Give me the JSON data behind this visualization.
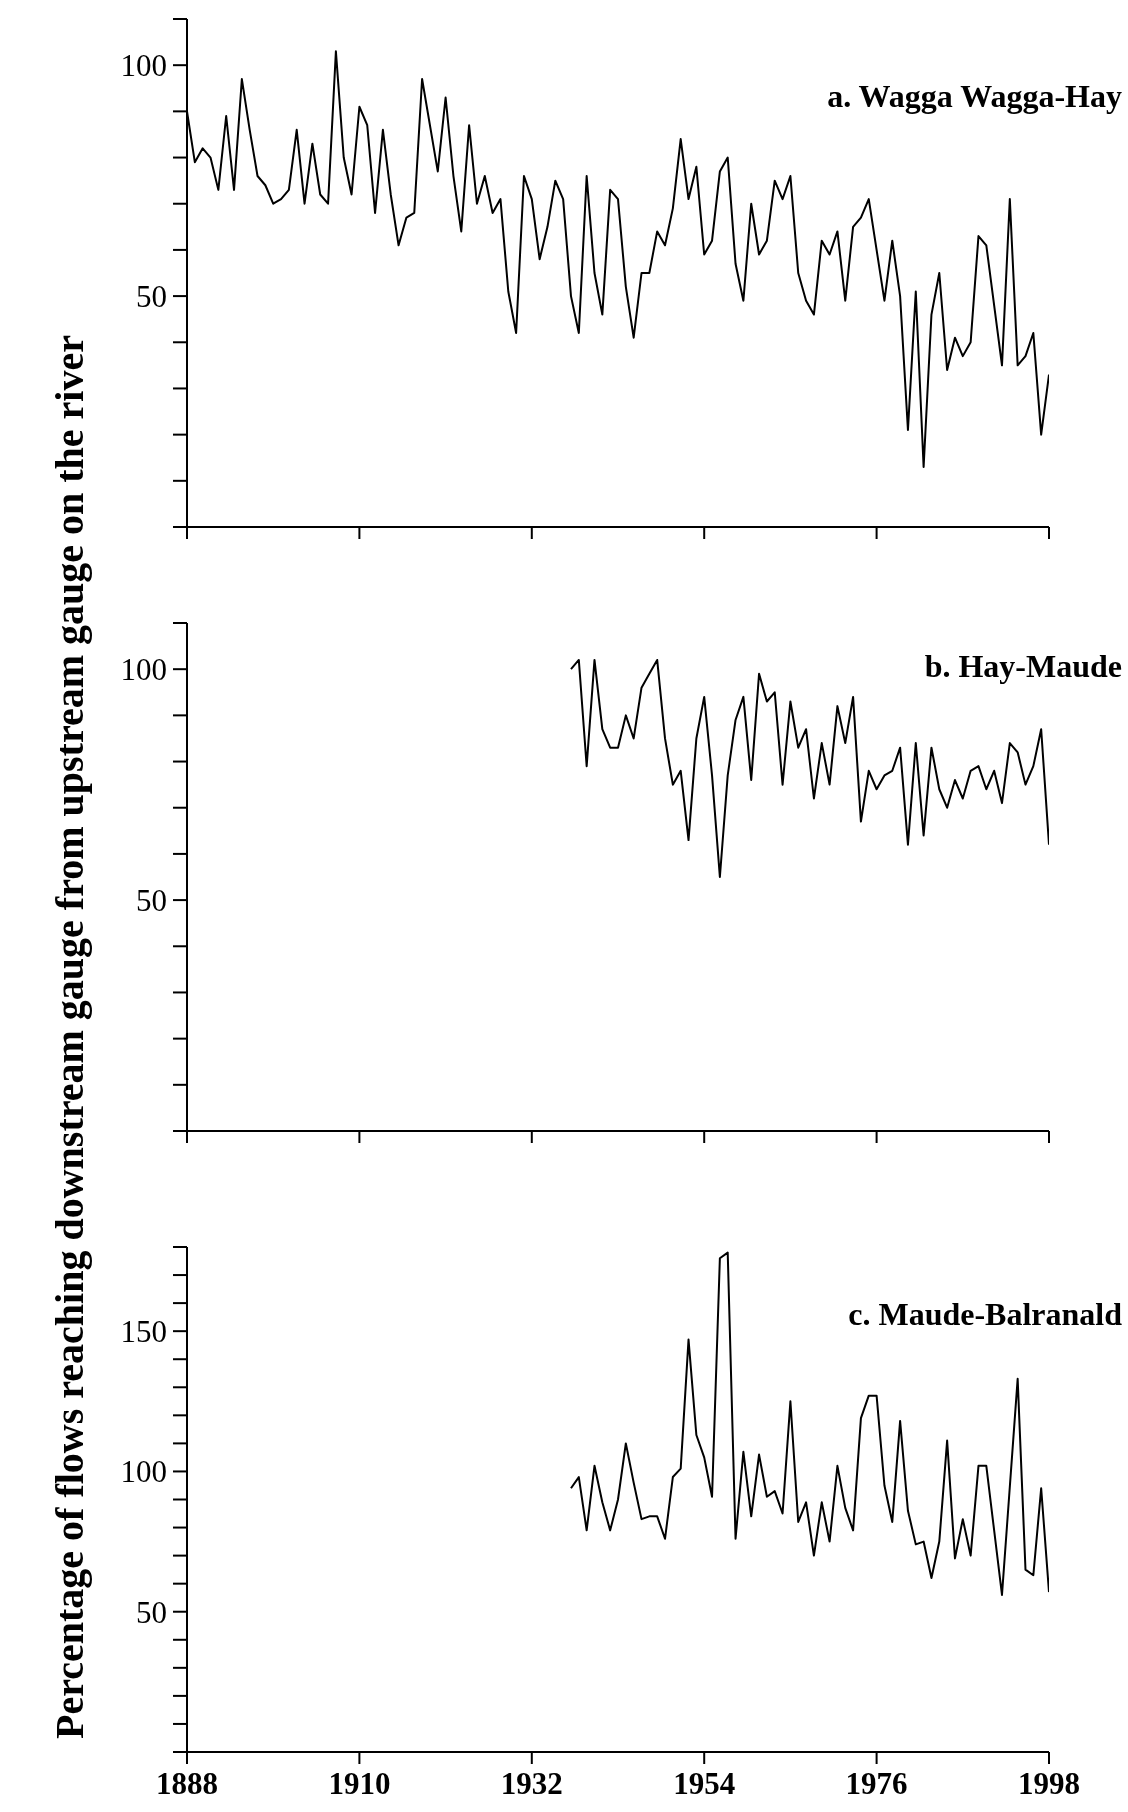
{
  "chart_data": [
    {
      "type": "line",
      "title": "a. Wagga Wagga-Hay",
      "tick_labels": "y",
      "marker": "none",
      "grid": false,
      "legend": false,
      "line_style": "solid",
      "x": [
        1888,
        1889,
        1890,
        1891,
        1892,
        1893,
        1894,
        1895,
        1896,
        1897,
        1898,
        1899,
        1900,
        1901,
        1902,
        1903,
        1904,
        1905,
        1906,
        1907,
        1908,
        1909,
        1910,
        1911,
        1912,
        1913,
        1914,
        1915,
        1916,
        1917,
        1918,
        1920,
        1921,
        1922,
        1923,
        1924,
        1925,
        1926,
        1927,
        1928,
        1929,
        1930,
        1931,
        1932,
        1933,
        1934,
        1935,
        1936,
        1937,
        1938,
        1939,
        1940,
        1941,
        1942,
        1943,
        1944,
        1945,
        1946,
        1947,
        1948,
        1949,
        1950,
        1951,
        1952,
        1953,
        1954,
        1955,
        1956,
        1957,
        1958,
        1959,
        1960,
        1961,
        1962,
        1963,
        1964,
        1965,
        1966,
        1967,
        1968,
        1969,
        1970,
        1971,
        1972,
        1973,
        1974,
        1975,
        1977,
        1978,
        1979,
        1980,
        1981,
        1982,
        1983,
        1984,
        1985,
        1986,
        1987,
        1988,
        1989,
        1990,
        1992,
        1993,
        1994,
        1995,
        1996,
        1997,
        1998
      ],
      "series": [
        {
          "color": "#000000",
          "values": [
            90,
            79,
            82,
            80,
            73,
            89,
            73,
            97,
            86,
            76,
            74,
            70,
            71,
            73,
            86,
            70,
            83,
            72,
            70,
            103,
            80,
            72,
            91,
            87,
            68,
            86,
            72,
            61,
            67,
            68,
            97,
            77,
            93,
            76,
            64,
            87,
            70,
            76,
            68,
            71,
            51,
            42,
            76,
            71,
            58,
            65,
            75,
            71,
            50,
            42,
            76,
            55,
            46,
            73,
            71,
            52,
            41,
            55,
            55,
            64,
            61,
            69,
            84,
            71,
            78,
            59,
            62,
            77,
            80,
            57,
            49,
            70,
            59,
            62,
            75,
            71,
            76,
            55,
            49,
            46,
            62,
            59,
            64,
            49,
            65,
            67,
            71,
            49,
            62,
            50,
            21,
            51,
            13,
            46,
            55,
            34,
            41,
            37,
            40,
            63,
            61,
            35,
            71,
            35,
            37,
            42,
            20,
            33
          ]
        }
      ],
      "xlim": [
        1888,
        1998
      ],
      "xticks": [
        1888,
        1910,
        1932,
        1954,
        1976,
        1998
      ],
      "ylim": [
        0,
        110
      ],
      "yticks": [
        {
          "value": 0,
          "label": null
        },
        {
          "value": 10,
          "label": null
        },
        {
          "value": 20,
          "label": null
        },
        {
          "value": 30,
          "label": null
        },
        {
          "value": 40,
          "label": null
        },
        50,
        {
          "value": 60,
          "label": null
        },
        {
          "value": 70,
          "label": null
        },
        {
          "value": 80,
          "label": null
        },
        {
          "value": 90,
          "label": null
        },
        100,
        {
          "value": 110,
          "label": null
        }
      ]
    },
    {
      "type": "line",
      "title": "b. Hay-Maude",
      "ylabel": "Percentage of flows reaching downstream gauge from upstream gauge on the river",
      "tick_labels": "y",
      "marker": "none",
      "grid": false,
      "legend": false,
      "line_style": "solid",
      "x": [
        1937,
        1938,
        1939,
        1940,
        1941,
        1942,
        1943,
        1944,
        1945,
        1946,
        1947,
        1948,
        1949,
        1950,
        1951,
        1952,
        1953,
        1954,
        1955,
        1956,
        1957,
        1958,
        1959,
        1960,
        1961,
        1962,
        1963,
        1964,
        1965,
        1966,
        1967,
        1968,
        1969,
        1970,
        1971,
        1972,
        1973,
        1974,
        1975,
        1976,
        1977,
        1978,
        1979,
        1980,
        1981,
        1982,
        1983,
        1984,
        1985,
        1986,
        1987,
        1988,
        1989,
        1990,
        1991,
        1992,
        1993,
        1994,
        1995,
        1996,
        1997,
        1998
      ],
      "series": [
        {
          "color": "#000000",
          "values": [
            100,
            102,
            79,
            102,
            87,
            83,
            83,
            90,
            85,
            96,
            99,
            102,
            85,
            75,
            78,
            63,
            85,
            94,
            77,
            55,
            77,
            89,
            94,
            76,
            99,
            93,
            95,
            75,
            93,
            83,
            87,
            72,
            84,
            75,
            92,
            84,
            94,
            67,
            78,
            74,
            77,
            78,
            83,
            62,
            84,
            64,
            83,
            74,
            70,
            76,
            72,
            78,
            79,
            74,
            78,
            71,
            84,
            82,
            75,
            79,
            87,
            62
          ]
        }
      ],
      "xlim": [
        1888,
        1998
      ],
      "xticks": [
        1888,
        1910,
        1932,
        1954,
        1976,
        1998
      ],
      "ylim": [
        0,
        110
      ],
      "yticks": [
        {
          "value": 0,
          "label": null
        },
        {
          "value": 10,
          "label": null
        },
        {
          "value": 20,
          "label": null
        },
        {
          "value": 30,
          "label": null
        },
        {
          "value": 40,
          "label": null
        },
        50,
        {
          "value": 60,
          "label": null
        },
        {
          "value": 70,
          "label": null
        },
        {
          "value": 80,
          "label": null
        },
        {
          "value": 90,
          "label": null
        },
        100,
        {
          "value": 110,
          "label": null
        }
      ]
    },
    {
      "type": "line",
      "title": "c. Maude-Balranald",
      "marker": "none",
      "grid": false,
      "legend": false,
      "line_style": "solid",
      "x": [
        1937,
        1938,
        1939,
        1940,
        1941,
        1942,
        1943,
        1944,
        1945,
        1946,
        1947,
        1948,
        1949,
        1950,
        1951,
        1952,
        1953,
        1954,
        1955,
        1956,
        1957,
        1958,
        1959,
        1960,
        1961,
        1962,
        1963,
        1964,
        1965,
        1966,
        1967,
        1968,
        1969,
        1970,
        1971,
        1972,
        1973,
        1974,
        1975,
        1976,
        1977,
        1978,
        1979,
        1980,
        1981,
        1982,
        1983,
        1984,
        1985,
        1986,
        1987,
        1988,
        1989,
        1990,
        1992,
        1994,
        1995,
        1996,
        1997,
        1998
      ],
      "series": [
        {
          "color": "#000000",
          "values": [
            94,
            98,
            79,
            102,
            89,
            79,
            90,
            110,
            96,
            83,
            84,
            84,
            76,
            98,
            101,
            147,
            113,
            105,
            91,
            176,
            178,
            76,
            107,
            84,
            106,
            91,
            93,
            85,
            125,
            82,
            89,
            70,
            89,
            75,
            102,
            87,
            79,
            119,
            127,
            127,
            95,
            82,
            118,
            86,
            74,
            75,
            62,
            75,
            111,
            69,
            83,
            70,
            102,
            102,
            56,
            133,
            65,
            63,
            94,
            57
          ]
        }
      ],
      "xlim": [
        1888,
        1998
      ],
      "xticks": [
        1888,
        1910,
        1932,
        1954,
        1976,
        1998
      ],
      "ylim": [
        0,
        180
      ],
      "yticks": [
        {
          "value": 0,
          "label": null
        },
        {
          "value": 10,
          "label": null
        },
        {
          "value": 20,
          "label": null
        },
        {
          "value": 30,
          "label": null
        },
        {
          "value": 40,
          "label": null
        },
        50,
        {
          "value": 60,
          "label": null
        },
        {
          "value": 70,
          "label": null
        },
        {
          "value": 80,
          "label": null
        },
        {
          "value": 90,
          "label": null
        },
        100,
        {
          "value": 110,
          "label": null
        },
        {
          "value": 120,
          "label": null
        },
        {
          "value": 130,
          "label": null
        },
        {
          "value": 140,
          "label": null
        },
        150,
        {
          "value": 160,
          "label": null
        },
        {
          "value": 170,
          "label": null
        },
        {
          "value": 180,
          "label": null
        }
      ]
    }
  ]
}
